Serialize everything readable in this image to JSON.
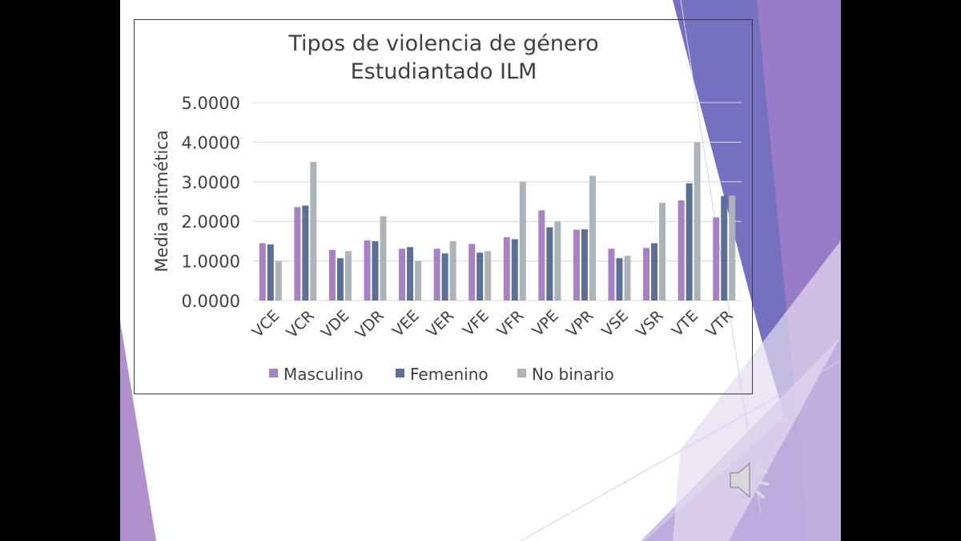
{
  "colors": {
    "masculino": "#a682c4",
    "femenino": "#5b6f97",
    "no_binario": "#adb4b9",
    "grid": "#d9d9d9",
    "text": "#404040"
  },
  "icons": {
    "audio": "speaker-icon"
  },
  "chart_data": {
    "type": "bar",
    "title": "Tipos de violencia de género",
    "subtitle": "Estudiantado ILM",
    "ylabel": "Media aritmética",
    "xlabel": "",
    "ylim": [
      0,
      5
    ],
    "yticks": [
      "0.0000",
      "1.0000",
      "2.0000",
      "3.0000",
      "4.0000",
      "5.0000"
    ],
    "grid": true,
    "legend_position": "bottom",
    "categories": [
      "VCE",
      "VCR",
      "VDE",
      "VDR",
      "VEE",
      "VER",
      "VFE",
      "VFR",
      "VPE",
      "VPR",
      "VSE",
      "VSR",
      "VTE",
      "VTR"
    ],
    "series": [
      {
        "name": "Masculino",
        "values": [
          1.45,
          2.36,
          1.28,
          1.52,
          1.31,
          1.31,
          1.43,
          1.6,
          2.28,
          1.79,
          1.31,
          1.33,
          2.53,
          2.1
        ]
      },
      {
        "name": "Femenino",
        "values": [
          1.42,
          2.4,
          1.07,
          1.5,
          1.35,
          1.19,
          1.21,
          1.55,
          1.85,
          1.8,
          1.07,
          1.45,
          2.96,
          2.64
        ]
      },
      {
        "name": "No binario",
        "values": [
          1.0,
          3.5,
          1.25,
          2.13,
          1.0,
          1.5,
          1.25,
          3.0,
          2.0,
          3.15,
          1.13,
          2.47,
          4.0,
          2.65
        ]
      }
    ]
  }
}
